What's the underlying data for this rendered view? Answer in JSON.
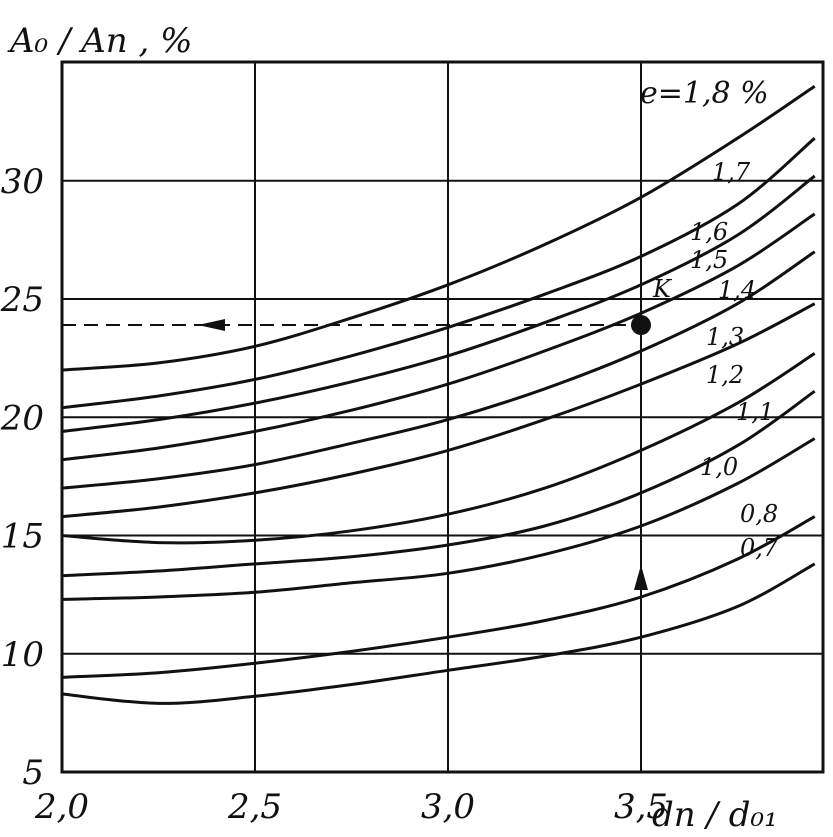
{
  "chart_data": {
    "type": "line",
    "ylabel": "A₀ / Aп , %",
    "xlabel": "dп / d₀₁",
    "xlim": [
      2.0,
      3.9
    ],
    "ylim": [
      5,
      34
    ],
    "x_ticks": [
      "2,0",
      "2,5",
      "3,0",
      "3,5"
    ],
    "x_tick_values": [
      2.0,
      2.5,
      3.0,
      3.5
    ],
    "y_ticks": [
      "5",
      "10",
      "15",
      "20",
      "25",
      "30"
    ],
    "y_tick_values": [
      5,
      10,
      15,
      20,
      25,
      30
    ],
    "grid": true,
    "x": [
      2.0,
      2.25,
      2.5,
      2.75,
      3.0,
      3.25,
      3.5,
      3.75,
      3.95
    ],
    "series": [
      {
        "name": "e=1,8 %",
        "values": [
          22.0,
          22.3,
          23.0,
          24.2,
          25.6,
          27.3,
          29.3,
          31.8,
          34.0
        ]
      },
      {
        "name": "1,7",
        "values": [
          20.4,
          20.9,
          21.6,
          22.6,
          23.8,
          25.2,
          26.8,
          29.0,
          31.8
        ]
      },
      {
        "name": "1,6",
        "values": [
          19.4,
          19.9,
          20.6,
          21.5,
          22.6,
          24.0,
          25.6,
          27.7,
          30.2
        ]
      },
      {
        "name": "1,5",
        "values": [
          18.2,
          18.7,
          19.4,
          20.3,
          21.4,
          22.8,
          24.4,
          26.4,
          28.6
        ]
      },
      {
        "name": "1,4",
        "values": [
          17.0,
          17.4,
          18.0,
          18.9,
          19.9,
          21.2,
          22.8,
          24.8,
          27.0
        ]
      },
      {
        "name": "1,3",
        "values": [
          15.8,
          16.2,
          16.8,
          17.6,
          18.6,
          19.9,
          21.4,
          23.1,
          24.8
        ]
      },
      {
        "name": "1,2",
        "values": [
          15.0,
          14.7,
          14.8,
          15.2,
          15.9,
          17.0,
          18.6,
          20.6,
          22.7
        ]
      },
      {
        "name": "1,1",
        "values": [
          13.3,
          13.5,
          13.8,
          14.1,
          14.6,
          15.4,
          16.8,
          18.8,
          21.1
        ]
      },
      {
        "name": "1,0",
        "values": [
          12.3,
          12.4,
          12.6,
          13.0,
          13.4,
          14.2,
          15.4,
          17.2,
          19.1
        ]
      },
      {
        "name": "0,8",
        "values": [
          9.0,
          9.2,
          9.6,
          10.1,
          10.7,
          11.4,
          12.4,
          14.0,
          15.8
        ]
      },
      {
        "name": "0,7",
        "values": [
          8.3,
          7.9,
          8.2,
          8.7,
          9.3,
          9.9,
          10.7,
          12.0,
          13.8
        ]
      }
    ],
    "point": {
      "label": "K",
      "x": 3.5,
      "y": 23.9
    }
  }
}
